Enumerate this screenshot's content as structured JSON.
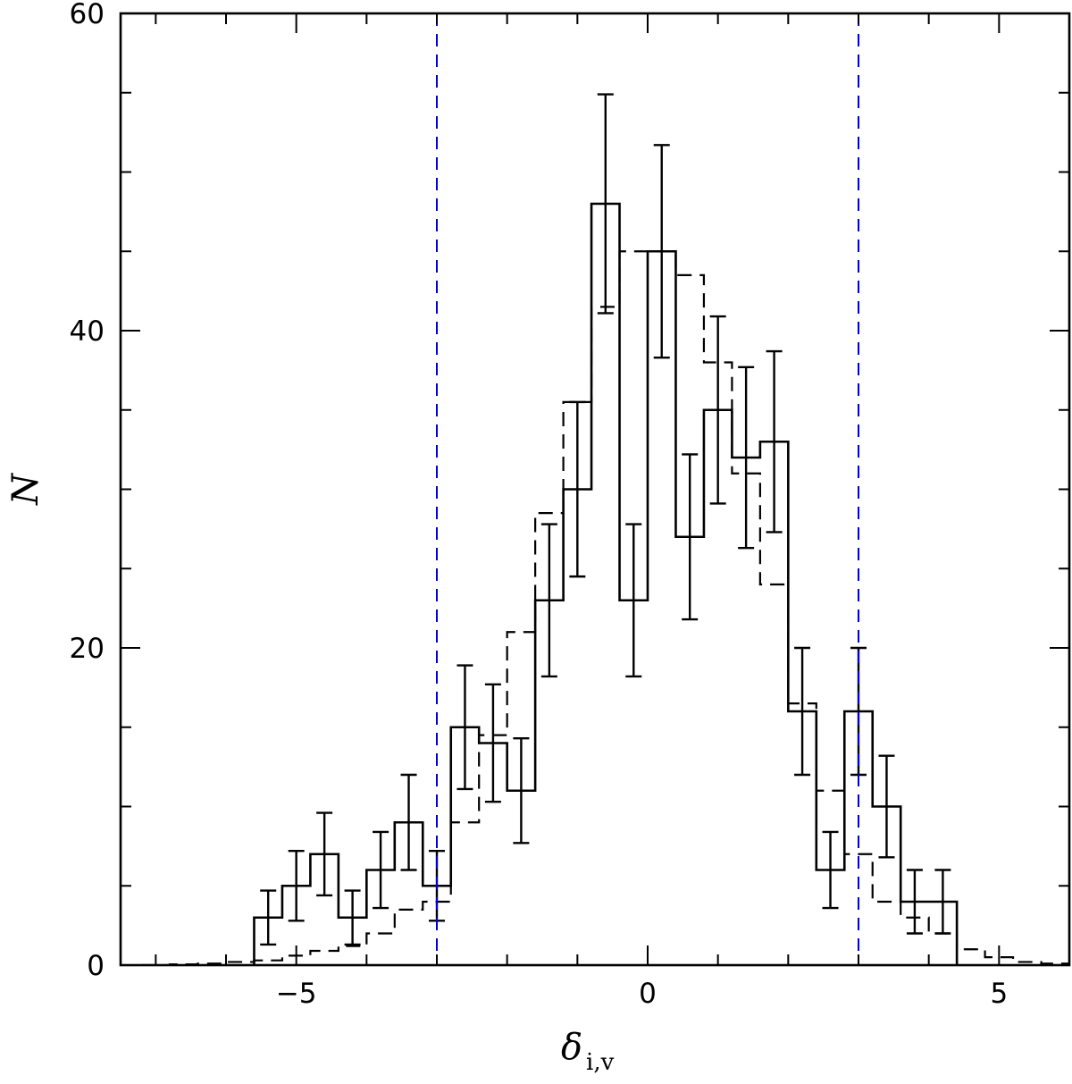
{
  "chart_data": {
    "type": "histogram",
    "xlabel": "δ",
    "xlabel_subscript": "i,v",
    "ylabel": "N",
    "xlim": [
      -7.5,
      6
    ],
    "ylim": [
      0,
      60
    ],
    "x_ticks": [
      -5,
      0,
      5
    ],
    "x_tick_labels": [
      "−5",
      "0",
      "5"
    ],
    "y_ticks": [
      0,
      20,
      40,
      60
    ],
    "y_tick_labels": [
      "0",
      "20",
      "40",
      "60"
    ],
    "grid": false,
    "series": [
      {
        "style": "solid",
        "color": "#000000",
        "bin_edges": [
          -5.6,
          -5.2,
          -4.8,
          -4.4,
          -4.0,
          -3.6,
          -3.2,
          -2.8,
          -2.4,
          -2.0,
          -1.6,
          -1.2,
          -0.8,
          -0.4,
          0.0,
          0.4,
          0.8,
          1.2,
          1.6,
          2.0,
          2.4,
          2.8,
          3.2,
          3.6,
          4.0,
          4.4
        ],
        "values": [
          3,
          5,
          7,
          3,
          6,
          9,
          5,
          15,
          14,
          11,
          23,
          30,
          48,
          23,
          45,
          27,
          35,
          32,
          33,
          16,
          6,
          16,
          10,
          4,
          4
        ],
        "errors": [
          1.7,
          2.2,
          2.6,
          1.7,
          2.4,
          3.0,
          2.2,
          3.9,
          3.7,
          3.3,
          4.8,
          5.5,
          6.9,
          4.8,
          6.7,
          5.2,
          5.9,
          5.7,
          5.7,
          4.0,
          2.4,
          4.0,
          3.2,
          2.0,
          2.0
        ]
      },
      {
        "style": "dashed",
        "color": "#000000",
        "bin_edges": [
          -7.2,
          -6.8,
          -6.4,
          -6.0,
          -5.6,
          -5.2,
          -4.8,
          -4.4,
          -4.0,
          -3.6,
          -3.2,
          -2.8,
          -2.4,
          -2.0,
          -1.6,
          -1.2,
          -0.8,
          -0.4,
          0.0,
          0.4,
          0.8,
          1.2,
          1.6,
          2.0,
          2.4,
          2.8,
          3.2,
          3.6,
          4.0,
          4.4,
          4.8,
          5.2,
          5.6,
          6.0
        ],
        "values": [
          0,
          0.05,
          0.1,
          0.2,
          0.3,
          0.6,
          0.9,
          1.2,
          2.0,
          3.5,
          4.0,
          9.0,
          14.5,
          21.0,
          28.5,
          35.5,
          41.5,
          45.0,
          45.0,
          43.5,
          38.0,
          31.0,
          24.0,
          16.5,
          11.0,
          7.0,
          4.0,
          3.0,
          2.0,
          1.0,
          0.5,
          0.2,
          0.1
        ]
      }
    ],
    "reference_lines": [
      {
        "x": -3.0,
        "color": "#0000cc",
        "style": "dashed"
      },
      {
        "x": 3.0,
        "color": "#0000cc",
        "style": "dashed"
      }
    ]
  }
}
